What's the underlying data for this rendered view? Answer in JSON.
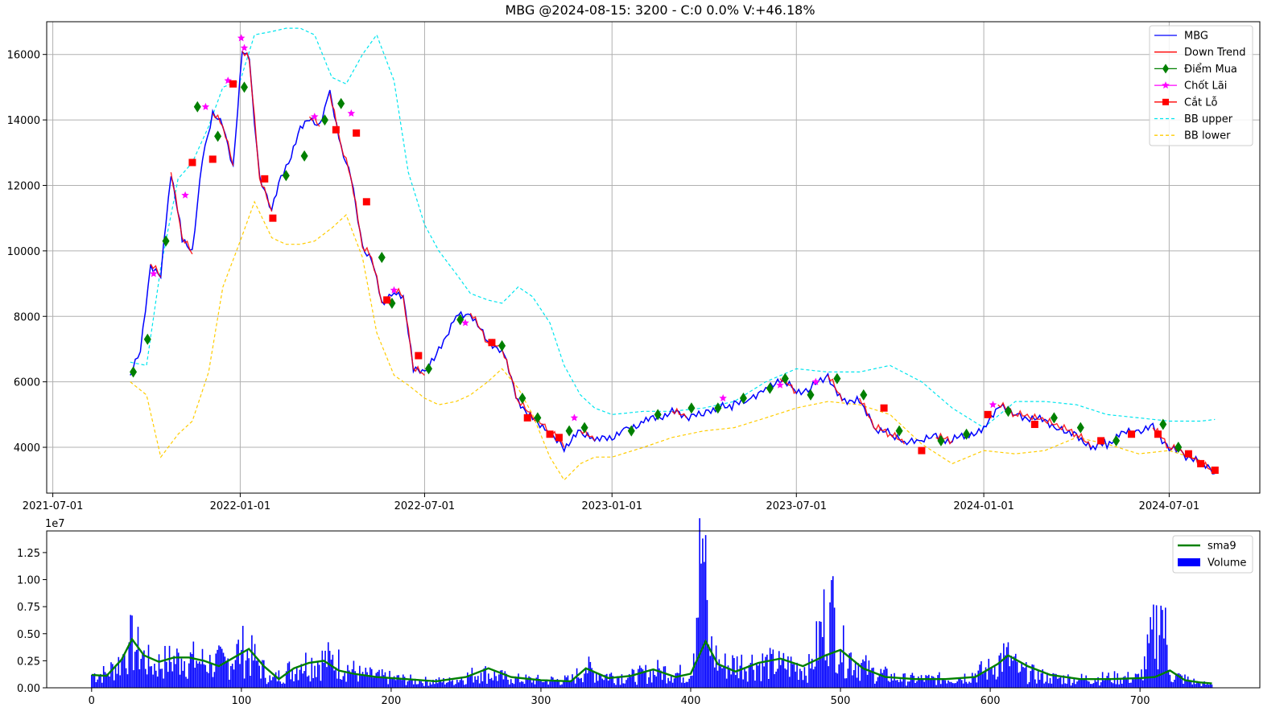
{
  "chart_data": [
    {
      "type": "line",
      "title": "MBG @2024-08-15: 3200 - C:0 0.0% V:+46.18%",
      "xlabel": "",
      "ylabel": "",
      "x_ticks": [
        {
          "label": "2021-07-01",
          "date": "2021-07-01"
        },
        {
          "label": "2022-01-01",
          "date": "2022-01-01"
        },
        {
          "label": "2022-07-01",
          "date": "2022-07-01"
        },
        {
          "label": "2023-01-01",
          "date": "2023-01-01"
        },
        {
          "label": "2023-07-01",
          "date": "2023-07-01"
        },
        {
          "label": "2024-01-01",
          "date": "2024-01-01"
        },
        {
          "label": "2024-07-01",
          "date": "2024-07-01"
        }
      ],
      "xlim": [
        "2021-06-25",
        "2024-09-28"
      ],
      "y_ticks": [
        4000,
        6000,
        8000,
        10000,
        12000,
        14000,
        16000
      ],
      "ylim": [
        2600,
        17000
      ],
      "grid": true,
      "legend": "top-right",
      "colors": {
        "price": "#0000ff",
        "down": "#ff0000",
        "buy": "#008000",
        "take_profit": "#ff00ff",
        "stop_loss": "#ff0000",
        "bb_upper": "#00e5ee",
        "bb_lower": "#ffcc00"
      },
      "legend_entries": [
        {
          "name": "MBG",
          "key": "price"
        },
        {
          "name": "Down Trend",
          "key": "down"
        },
        {
          "name": "Điểm Mua",
          "key": "buy"
        },
        {
          "name": "Chốt Lãi",
          "key": "take_profit"
        },
        {
          "name": "Cắt Lỗ",
          "key": "stop_loss"
        },
        {
          "name": "BB upper",
          "key": "bb_upper"
        },
        {
          "name": "BB lower",
          "key": "bb_lower"
        }
      ],
      "series": [
        {
          "name": "MBG",
          "x": [
            "2021-09-15",
            "2021-09-25",
            "2021-10-05",
            "2021-10-15",
            "2021-10-25",
            "2021-11-05",
            "2021-11-15",
            "2021-11-25",
            "2021-12-05",
            "2021-12-15",
            "2021-12-25",
            "2022-01-03",
            "2022-01-10",
            "2022-01-20",
            "2022-02-01",
            "2022-02-10",
            "2022-02-20",
            "2022-03-01",
            "2022-03-10",
            "2022-03-20",
            "2022-03-30",
            "2022-04-10",
            "2022-04-20",
            "2022-05-01",
            "2022-05-10",
            "2022-05-20",
            "2022-06-01",
            "2022-06-10",
            "2022-06-20",
            "2022-07-01",
            "2022-07-15",
            "2022-08-01",
            "2022-08-15",
            "2022-09-01",
            "2022-09-15",
            "2022-10-01",
            "2022-10-15",
            "2022-11-01",
            "2022-11-15",
            "2022-12-01",
            "2022-12-15",
            "2023-01-01",
            "2023-01-15",
            "2023-02-01",
            "2023-02-15",
            "2023-03-01",
            "2023-03-15",
            "2023-04-01",
            "2023-04-15",
            "2023-05-01",
            "2023-05-15",
            "2023-06-01",
            "2023-06-15",
            "2023-07-01",
            "2023-07-15",
            "2023-08-01",
            "2023-08-15",
            "2023-09-01",
            "2023-09-15",
            "2023-10-01",
            "2023-10-15",
            "2023-11-01",
            "2023-11-15",
            "2023-12-01",
            "2023-12-15",
            "2024-01-01",
            "2024-01-15",
            "2024-02-01",
            "2024-02-15",
            "2024-03-01",
            "2024-03-15",
            "2024-04-01",
            "2024-04-15",
            "2024-05-01",
            "2024-05-15",
            "2024-06-01",
            "2024-06-15",
            "2024-07-01",
            "2024-07-15",
            "2024-08-01",
            "2024-08-15"
          ],
          "values": [
            6200,
            6900,
            9600,
            9200,
            12400,
            10400,
            9900,
            12900,
            14200,
            13800,
            12600,
            16100,
            15800,
            12200,
            11200,
            12300,
            12900,
            13700,
            14100,
            13800,
            14800,
            13200,
            12200,
            10100,
            9800,
            8400,
            8800,
            8600,
            6400,
            6200,
            7000,
            8000,
            8100,
            7200,
            7000,
            5400,
            4900,
            4500,
            4000,
            4500,
            4200,
            4300,
            4500,
            4800,
            4900,
            5100,
            4900,
            5000,
            5200,
            5300,
            5500,
            5800,
            6100,
            5700,
            5800,
            6200,
            5400,
            5500,
            4600,
            4400,
            4100,
            4200,
            4300,
            4200,
            4400,
            4500,
            5300,
            5000,
            4900,
            4800,
            4600,
            4400,
            4000,
            4100,
            4400,
            4500,
            4600,
            4000,
            3800,
            3500,
            3200
          ]
        },
        {
          "name": "BB upper",
          "x": [
            "2021-09-15",
            "2021-10-01",
            "2021-10-15",
            "2021-11-01",
            "2021-11-15",
            "2021-12-01",
            "2021-12-15",
            "2022-01-01",
            "2022-01-15",
            "2022-02-01",
            "2022-02-15",
            "2022-03-01",
            "2022-03-15",
            "2022-04-01",
            "2022-04-15",
            "2022-05-01",
            "2022-05-15",
            "2022-06-01",
            "2022-06-15",
            "2022-07-01",
            "2022-07-15",
            "2022-08-01",
            "2022-08-15",
            "2022-09-01",
            "2022-09-15",
            "2022-10-01",
            "2022-10-15",
            "2022-11-01",
            "2022-11-15",
            "2022-12-01",
            "2022-12-15",
            "2023-01-01",
            "2023-02-01",
            "2023-03-01",
            "2023-04-01",
            "2023-05-01",
            "2023-06-01",
            "2023-07-01",
            "2023-08-01",
            "2023-09-01",
            "2023-10-01",
            "2023-11-01",
            "2023-12-01",
            "2024-01-01",
            "2024-02-01",
            "2024-03-01",
            "2024-04-01",
            "2024-05-01",
            "2024-06-01",
            "2024-07-01",
            "2024-08-01",
            "2024-08-15"
          ],
          "values": [
            6600,
            6500,
            9500,
            12200,
            12700,
            13800,
            15000,
            15200,
            16600,
            16700,
            16800,
            16800,
            16600,
            15300,
            15100,
            16000,
            16600,
            15200,
            12400,
            10800,
            10000,
            9300,
            8700,
            8500,
            8400,
            8900,
            8600,
            7800,
            6500,
            5600,
            5200,
            5000,
            5100,
            5100,
            5200,
            5400,
            6000,
            6400,
            6300,
            6300,
            6500,
            6000,
            5200,
            4600,
            5400,
            5400,
            5300,
            5000,
            4900,
            4800,
            4800,
            4850
          ]
        },
        {
          "name": "BB lower",
          "x": [
            "2021-09-15",
            "2021-10-01",
            "2021-10-15",
            "2021-11-01",
            "2021-11-15",
            "2021-12-01",
            "2021-12-15",
            "2022-01-01",
            "2022-01-15",
            "2022-02-01",
            "2022-02-15",
            "2022-03-01",
            "2022-03-15",
            "2022-04-01",
            "2022-04-15",
            "2022-05-01",
            "2022-05-15",
            "2022-06-01",
            "2022-06-15",
            "2022-07-01",
            "2022-07-15",
            "2022-08-01",
            "2022-08-15",
            "2022-09-01",
            "2022-09-15",
            "2022-10-01",
            "2022-10-15",
            "2022-11-01",
            "2022-11-15",
            "2022-12-01",
            "2022-12-15",
            "2023-01-01",
            "2023-02-01",
            "2023-03-01",
            "2023-04-01",
            "2023-05-01",
            "2023-06-01",
            "2023-07-01",
            "2023-08-01",
            "2023-09-01",
            "2023-10-01",
            "2023-11-01",
            "2023-12-01",
            "2024-01-01",
            "2024-02-01",
            "2024-03-01",
            "2024-04-01",
            "2024-05-01",
            "2024-06-01",
            "2024-07-01",
            "2024-08-01",
            "2024-08-15"
          ],
          "values": [
            6000,
            5600,
            3700,
            4400,
            4800,
            6300,
            8900,
            10300,
            11500,
            10400,
            10200,
            10200,
            10300,
            10700,
            11100,
            9800,
            7500,
            6200,
            5900,
            5500,
            5300,
            5400,
            5600,
            6000,
            6400,
            5800,
            5000,
            3700,
            3000,
            3500,
            3700,
            3700,
            4000,
            4300,
            4500,
            4600,
            4900,
            5200,
            5400,
            5300,
            5000,
            4100,
            3500,
            3900,
            3800,
            3900,
            4300,
            4100,
            3800,
            3900,
            3600,
            3300
          ]
        }
      ],
      "markers": {
        "buy": {
          "name": "Điểm Mua",
          "x": [
            "2021-09-18",
            "2021-10-02",
            "2021-10-20",
            "2021-11-20",
            "2021-12-10",
            "2022-01-05",
            "2022-02-15",
            "2022-03-05",
            "2022-03-25",
            "2022-04-10",
            "2022-05-20",
            "2022-05-30",
            "2022-07-05",
            "2022-08-05",
            "2022-09-15",
            "2022-10-05",
            "2022-10-20",
            "2022-11-20",
            "2022-12-05",
            "2023-01-20",
            "2023-02-15",
            "2023-03-20",
            "2023-04-15",
            "2023-05-10",
            "2023-06-05",
            "2023-06-20",
            "2023-07-15",
            "2023-08-10",
            "2023-09-05",
            "2023-10-10",
            "2023-11-20",
            "2023-12-15",
            "2024-01-25",
            "2024-03-10",
            "2024-04-05",
            "2024-05-10",
            "2024-06-25",
            "2024-07-10"
          ],
          "values": [
            6300,
            7300,
            10300,
            14400,
            13500,
            15000,
            12300,
            12900,
            14000,
            14500,
            9800,
            8400,
            6400,
            7900,
            7100,
            5500,
            4900,
            4500,
            4600,
            4500,
            5000,
            5200,
            5200,
            5500,
            5800,
            6100,
            5600,
            6100,
            5600,
            4500,
            4200,
            4400,
            5100,
            4900,
            4600,
            4200,
            4700,
            4000
          ]
        },
        "take_profit": {
          "name": "Chốt Lãi",
          "x": [
            "2021-10-08",
            "2021-11-08",
            "2021-11-28",
            "2021-12-20",
            "2022-01-02",
            "2022-01-05",
            "2022-03-15",
            "2022-04-20",
            "2022-06-01",
            "2022-08-10",
            "2022-11-25",
            "2023-04-20",
            "2023-06-15",
            "2023-07-20",
            "2024-01-10"
          ],
          "values": [
            9300,
            11700,
            14400,
            15200,
            16500,
            16200,
            14100,
            14200,
            8800,
            7800,
            4900,
            5500,
            5900,
            6000,
            5300
          ]
        },
        "stop_loss": {
          "name": "Cắt Lỗ",
          "x": [
            "2021-11-15",
            "2021-12-05",
            "2021-12-25",
            "2022-01-25",
            "2022-02-02",
            "2022-04-05",
            "2022-04-25",
            "2022-05-05",
            "2022-05-25",
            "2022-06-25",
            "2022-09-05",
            "2022-10-10",
            "2022-11-01",
            "2022-11-10",
            "2023-09-25",
            "2023-11-01",
            "2024-01-05",
            "2024-02-20",
            "2024-04-25",
            "2024-05-25",
            "2024-06-20",
            "2024-07-20",
            "2024-08-01",
            "2024-08-15"
          ],
          "values": [
            12700,
            12800,
            15100,
            12200,
            11000,
            13700,
            13600,
            11500,
            8500,
            6800,
            7200,
            4900,
            4400,
            4300,
            5200,
            3900,
            5000,
            4700,
            4200,
            4400,
            4400,
            3800,
            3500,
            3300
          ]
        }
      }
    },
    {
      "type": "bar",
      "title": "",
      "exponent_label": "1e7",
      "xlim": [
        -30,
        780
      ],
      "ylim": [
        0,
        14500000
      ],
      "x_ticks": [
        0,
        100,
        200,
        300,
        400,
        500,
        600,
        700
      ],
      "y_ticks": [
        0,
        2500000,
        5000000,
        7500000,
        10000000,
        12500000
      ],
      "y_tick_labels": [
        "0.00",
        "0.25",
        "0.50",
        "0.75",
        "1.00",
        "1.25"
      ],
      "grid": false,
      "legend": "top-right",
      "colors": {
        "volume": "#0000ff",
        "sma9": "#008000"
      },
      "legend_entries": [
        {
          "name": "sma9",
          "key": "sma9"
        },
        {
          "name": "Volume",
          "key": "volume"
        }
      ],
      "volume_profile": {
        "x": [
          0,
          10,
          20,
          25,
          30,
          40,
          50,
          60,
          70,
          80,
          90,
          100,
          110,
          120,
          140,
          160,
          180,
          200,
          220,
          240,
          260,
          280,
          300,
          320,
          330,
          340,
          360,
          380,
          400,
          408,
          412,
          420,
          440,
          460,
          480,
          493,
          500,
          520,
          540,
          560,
          580,
          600,
          610,
          620,
          640,
          660,
          680,
          700,
          715,
          720,
          740,
          748
        ],
        "values": [
          1200000,
          1300000,
          2500000,
          4200000,
          3500000,
          2000000,
          2400000,
          2700000,
          2500000,
          2200000,
          2400000,
          3500000,
          2500000,
          700000,
          2200000,
          2600000,
          1200000,
          900000,
          600000,
          600000,
          1400000,
          800000,
          700000,
          700000,
          1800000,
          1200000,
          1000000,
          1600000,
          1100000,
          13800000,
          4000000,
          2000000,
          2300000,
          2100000,
          1800000,
          7900000,
          3500000,
          1500000,
          800000,
          800000,
          900000,
          1700000,
          3000000,
          1500000,
          900000,
          800000,
          900000,
          900000,
          7200000,
          1200000,
          400000,
          300000
        ]
      },
      "series": [
        {
          "name": "sma9",
          "x": [
            0,
            10,
            20,
            27,
            35,
            45,
            55,
            65,
            75,
            85,
            95,
            105,
            115,
            125,
            135,
            145,
            155,
            165,
            175,
            190,
            210,
            230,
            250,
            265,
            280,
            300,
            320,
            330,
            345,
            360,
            375,
            390,
            400,
            410,
            418,
            430,
            445,
            460,
            475,
            490,
            500,
            515,
            530,
            550,
            570,
            590,
            605,
            612,
            625,
            640,
            660,
            680,
            700,
            710,
            720,
            730,
            740,
            748
          ],
          "values": [
            1200000,
            1100000,
            2600000,
            4500000,
            3000000,
            2400000,
            2800000,
            2800000,
            2500000,
            2000000,
            2800000,
            3600000,
            2000000,
            800000,
            1800000,
            2300000,
            2500000,
            1600000,
            1300000,
            1000000,
            800000,
            600000,
            1000000,
            1800000,
            1000000,
            700000,
            600000,
            1800000,
            900000,
            1100000,
            1700000,
            1000000,
            1300000,
            4300000,
            2200000,
            1500000,
            2300000,
            2700000,
            2000000,
            3000000,
            3500000,
            1800000,
            1000000,
            800000,
            800000,
            1000000,
            2200000,
            3000000,
            2000000,
            1200000,
            800000,
            800000,
            900000,
            1000000,
            1600000,
            700000,
            500000,
            400000
          ]
        }
      ]
    }
  ]
}
